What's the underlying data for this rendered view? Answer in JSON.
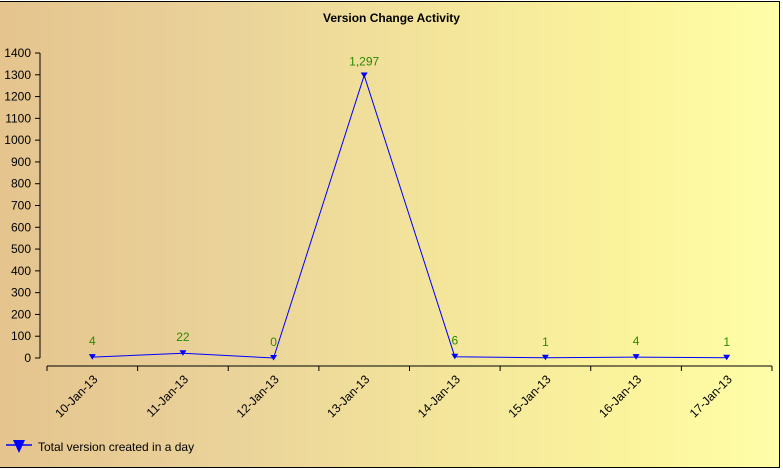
{
  "chart_data": {
    "type": "line",
    "title": "Version Change Activity",
    "xlabel": "",
    "ylabel": "",
    "categories": [
      "10-Jan-13",
      "11-Jan-13",
      "12-Jan-13",
      "13-Jan-13",
      "14-Jan-13",
      "15-Jan-13",
      "16-Jan-13",
      "17-Jan-13"
    ],
    "series": [
      {
        "name": "Total version created in a day",
        "values": [
          4,
          22,
          0,
          1297,
          6,
          1,
          4,
          1
        ],
        "color": "#0000ff",
        "marker": "triangle-down"
      }
    ],
    "data_labels": [
      "4",
      "22",
      "0",
      "1,297",
      "6",
      "1",
      "4",
      "1"
    ],
    "ylim": [
      0,
      1400
    ],
    "yticks": [
      0,
      100,
      200,
      300,
      400,
      500,
      600,
      700,
      800,
      900,
      1000,
      1100,
      1200,
      1300,
      1400
    ],
    "grid": false,
    "legend_position": "bottom-left",
    "label_color": "#2b8a00"
  },
  "legend": {
    "label": "Total version created in a day"
  }
}
